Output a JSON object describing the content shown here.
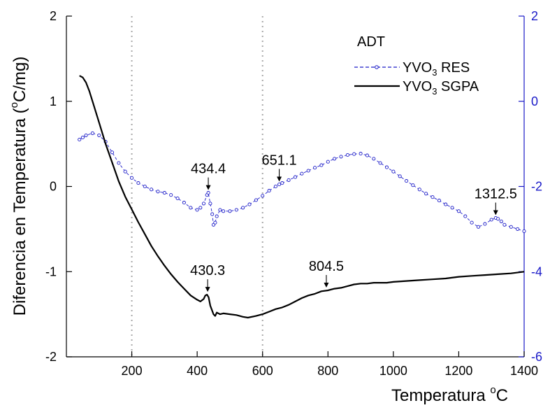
{
  "chart_data": {
    "type": "line",
    "title": "",
    "xlabel": "Temperatura",
    "xlabel_unit_degree": "o",
    "xlabel_unit": "C",
    "ylabel": "Diferencia en Temperatura (",
    "ylabel_unit_degree": "o",
    "ylabel_unit": "C/mg)",
    "xlim": [
      0,
      1400
    ],
    "ylim": [
      -2,
      2
    ],
    "y2lim": [
      -6,
      2
    ],
    "x_ticks": [
      200,
      400,
      600,
      800,
      1000,
      1200,
      1400
    ],
    "y_ticks": [
      2,
      1,
      0,
      -1,
      -2
    ],
    "y2_ticks": [
      2,
      0,
      -2,
      -4,
      -6
    ],
    "grid": "vertical dotted lines at 200 and 600",
    "vlines": [
      200,
      600
    ],
    "legend": {
      "title": "ADT",
      "placement": "top-right",
      "items": [
        {
          "prefix": "YVO",
          "sub": "3",
          "suffix": " RES"
        },
        {
          "prefix": "YVO",
          "sub": "3",
          "suffix": " SGPA"
        }
      ]
    },
    "series": [
      {
        "name": "YVO3 RES",
        "axis": "right",
        "style": "dashed-circles",
        "color": "#1a1ac8",
        "x": [
          40,
          50,
          60,
          80,
          100,
          120,
          140,
          160,
          180,
          200,
          220,
          240,
          260,
          280,
          300,
          320,
          340,
          360,
          380,
          400,
          410,
          420,
          430,
          434,
          440,
          446,
          450,
          455,
          460,
          470,
          480,
          500,
          520,
          540,
          560,
          580,
          600,
          620,
          640,
          651,
          660,
          680,
          700,
          720,
          740,
          760,
          780,
          800,
          820,
          840,
          860,
          880,
          900,
          920,
          940,
          960,
          980,
          1000,
          1020,
          1040,
          1060,
          1080,
          1100,
          1120,
          1140,
          1160,
          1180,
          1200,
          1220,
          1240,
          1260,
          1280,
          1300,
          1313,
          1320,
          1330,
          1340,
          1360,
          1380,
          1400
        ],
        "y": [
          -0.9,
          -0.85,
          -0.8,
          -0.75,
          -0.8,
          -0.95,
          -1.2,
          -1.45,
          -1.65,
          -1.8,
          -1.92,
          -2.0,
          -2.07,
          -2.12,
          -2.15,
          -2.2,
          -2.28,
          -2.38,
          -2.5,
          -2.55,
          -2.5,
          -2.4,
          -2.2,
          -2.15,
          -2.4,
          -2.65,
          -2.9,
          -2.85,
          -2.7,
          -2.55,
          -2.58,
          -2.58,
          -2.55,
          -2.5,
          -2.42,
          -2.32,
          -2.22,
          -2.1,
          -2.0,
          -1.95,
          -1.92,
          -1.85,
          -1.78,
          -1.7,
          -1.63,
          -1.56,
          -1.5,
          -1.42,
          -1.35,
          -1.3,
          -1.26,
          -1.24,
          -1.23,
          -1.27,
          -1.35,
          -1.45,
          -1.55,
          -1.65,
          -1.76,
          -1.87,
          -1.97,
          -2.07,
          -2.17,
          -2.25,
          -2.33,
          -2.42,
          -2.5,
          -2.58,
          -2.7,
          -2.85,
          -2.95,
          -2.88,
          -2.78,
          -2.74,
          -2.76,
          -2.82,
          -2.9,
          -2.95,
          -3.0,
          -3.05
        ]
      },
      {
        "name": "YVO3 SGPA",
        "axis": "left",
        "style": "solid",
        "color": "#000000",
        "x": [
          40,
          50,
          60,
          70,
          80,
          100,
          120,
          140,
          160,
          180,
          200,
          220,
          240,
          260,
          280,
          300,
          320,
          340,
          360,
          380,
          400,
          410,
          420,
          425,
          430,
          435,
          440,
          450,
          455,
          460,
          470,
          480,
          500,
          520,
          540,
          555,
          580,
          600,
          620,
          640,
          660,
          680,
          700,
          720,
          740,
          760,
          780,
          800,
          820,
          840,
          860,
          880,
          900,
          920,
          940,
          960,
          980,
          1000,
          1040,
          1080,
          1120,
          1160,
          1200,
          1240,
          1280,
          1320,
          1360,
          1400
        ],
        "y": [
          1.3,
          1.28,
          1.22,
          1.12,
          1.0,
          0.75,
          0.5,
          0.28,
          0.06,
          -0.12,
          -0.27,
          -0.42,
          -0.56,
          -0.7,
          -0.82,
          -0.93,
          -1.03,
          -1.12,
          -1.2,
          -1.28,
          -1.33,
          -1.35,
          -1.32,
          -1.28,
          -1.27,
          -1.3,
          -1.4,
          -1.5,
          -1.52,
          -1.48,
          -1.5,
          -1.49,
          -1.5,
          -1.51,
          -1.53,
          -1.54,
          -1.52,
          -1.5,
          -1.47,
          -1.44,
          -1.42,
          -1.39,
          -1.35,
          -1.31,
          -1.28,
          -1.26,
          -1.23,
          -1.22,
          -1.2,
          -1.19,
          -1.17,
          -1.15,
          -1.14,
          -1.14,
          -1.13,
          -1.13,
          -1.13,
          -1.12,
          -1.11,
          -1.1,
          -1.09,
          -1.08,
          -1.06,
          -1.05,
          -1.04,
          -1.03,
          -1.02,
          -1.0
        ]
      }
    ],
    "annotations": [
      {
        "text": "434.4",
        "series": "right",
        "x": 434,
        "y": -2.15
      },
      {
        "text": "651.1",
        "series": "right",
        "x": 651,
        "y": -1.95
      },
      {
        "text": "1312.5",
        "series": "right",
        "x": 1313,
        "y": -2.74
      },
      {
        "text": "430.3",
        "series": "left",
        "x": 432,
        "y": -1.27
      },
      {
        "text": "804.5",
        "series": "left",
        "x": 795,
        "y": -1.22
      }
    ]
  }
}
